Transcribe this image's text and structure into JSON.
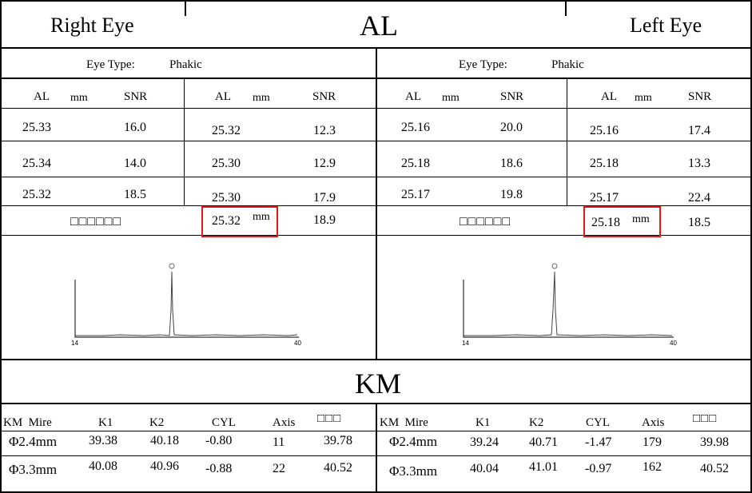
{
  "header": {
    "right_eye_label": "Right Eye",
    "title": "AL",
    "left_eye_label": "Left Eye"
  },
  "right": {
    "eye_type_label": "Eye Type:",
    "eye_type_value": "Phakic",
    "col_al": "AL",
    "col_mm": "mm",
    "col_snr": "SNR",
    "rows_left": [
      {
        "al": "25.33",
        "snr": "16.0"
      },
      {
        "al": "25.34",
        "snr": "14.0"
      },
      {
        "al": "25.32",
        "snr": "18.5"
      }
    ],
    "rows_right": [
      {
        "al": "25.32",
        "snr": "12.3"
      },
      {
        "al": "25.30",
        "snr": "12.9"
      },
      {
        "al": "25.30",
        "snr": "17.9"
      }
    ],
    "summary_label": "□□□□□□",
    "summary_al": "25.32",
    "summary_unit": "mm",
    "summary_snr": "18.9",
    "graph_x_min": "14",
    "graph_x_max": "40"
  },
  "left": {
    "eye_type_label": "Eye Type:",
    "eye_type_value": "Phakic",
    "col_al": "AL",
    "col_mm": "mm",
    "col_snr": "SNR",
    "rows_left": [
      {
        "al": "25.16",
        "snr": "20.0"
      },
      {
        "al": "25.18",
        "snr": "18.6"
      },
      {
        "al": "25.17",
        "snr": "19.8"
      }
    ],
    "rows_right": [
      {
        "al": "25.16",
        "snr": "17.4"
      },
      {
        "al": "25.18",
        "snr": "13.3"
      },
      {
        "al": "25.17",
        "snr": "22.4"
      }
    ],
    "summary_label": "□□□□□□",
    "summary_al": "25.18",
    "summary_unit": "mm",
    "summary_snr": "18.5",
    "graph_x_min": "14",
    "graph_x_max": "40"
  },
  "km": {
    "title": "KM",
    "right": {
      "headers": {
        "mire": "KM  Mire",
        "k1": "K1",
        "k2": "K2",
        "cyl": "CYL",
        "axis": "Axis",
        "extra": "□□□"
      },
      "rows": [
        {
          "mire": "Φ2.4mm",
          "k1": "39.38",
          "k2": "40.18",
          "cyl": "-0.80",
          "axis": "11",
          "extra": "39.78"
        },
        {
          "mire": "Φ3.3mm",
          "k1": "40.08",
          "k2": "40.96",
          "cyl": "-0.88",
          "axis": "22",
          "extra": "40.52"
        }
      ]
    },
    "left": {
      "headers": {
        "mire": "KM  Mire",
        "k1": "K1",
        "k2": "K2",
        "cyl": "CYL",
        "axis": "Axis",
        "extra": "□□□"
      },
      "rows": [
        {
          "mire": "Φ2.4mm",
          "k1": "39.24",
          "k2": "40.71",
          "cyl": "-1.47",
          "axis": "179",
          "extra": "39.98"
        },
        {
          "mire": "Φ3.3mm",
          "k1": "40.04",
          "k2": "41.01",
          "cyl": "-0.97",
          "axis": "162",
          "extra": "40.52"
        }
      ]
    }
  }
}
